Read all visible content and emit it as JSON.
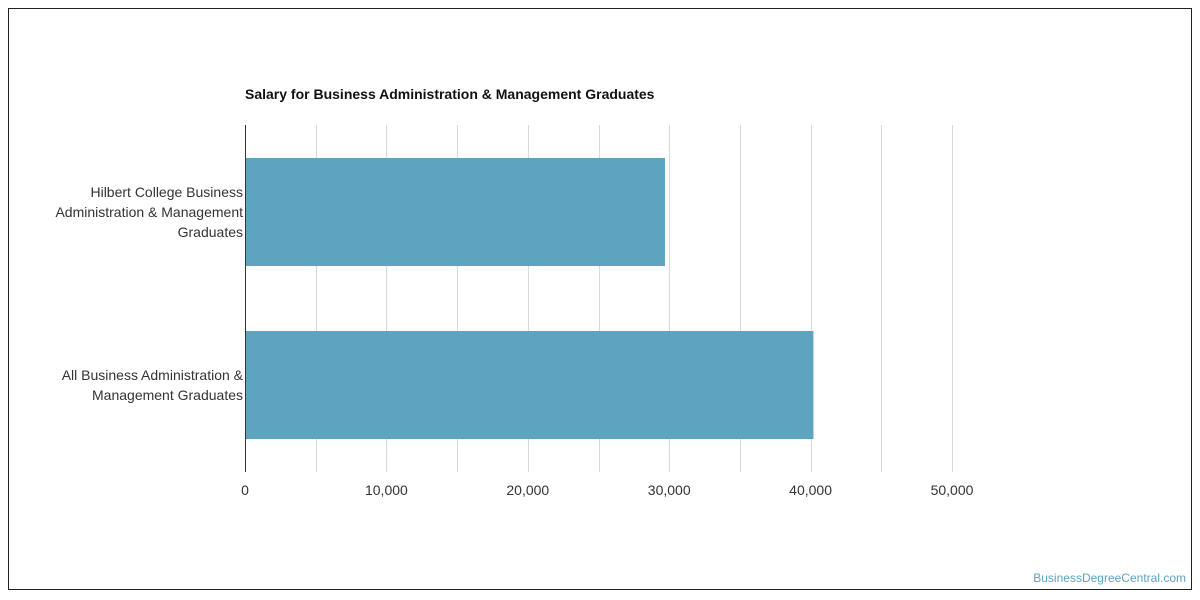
{
  "chart_data": {
    "type": "bar",
    "orientation": "horizontal",
    "title": "Salary for Business Administration & Management Graduates",
    "categories": [
      [
        "Hilbert College Business",
        "Administration & Management",
        "Graduates"
      ],
      [
        "All Business Administration &",
        "Management Graduates"
      ]
    ],
    "values": [
      29700,
      40200
    ],
    "xlim": [
      0,
      50000
    ],
    "xticks": [
      0,
      10000,
      20000,
      30000,
      40000,
      50000
    ],
    "xtick_labels": [
      "0",
      "10,000",
      "20,000",
      "30,000",
      "40,000",
      "50,000"
    ],
    "grid": true,
    "bar_color": "#5ea3c0",
    "xlabel": "",
    "ylabel": ""
  },
  "watermark": "BusinessDegreeCentral.com"
}
